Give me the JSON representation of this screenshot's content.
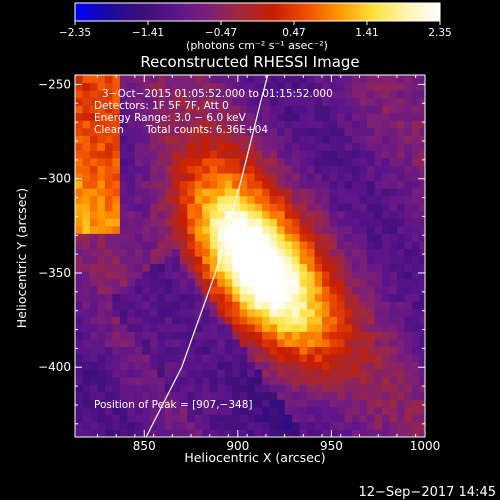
{
  "colorbar": {
    "ticks": [
      {
        "value": -2.35,
        "label": "−2.35"
      },
      {
        "value": -1.41,
        "label": "−1.41"
      },
      {
        "value": -0.47,
        "label": "−0.47"
      },
      {
        "value": 0.47,
        "label": "0.47"
      },
      {
        "value": 1.41,
        "label": "1.41"
      },
      {
        "value": 2.35,
        "label": "2.35"
      }
    ],
    "range": [
      -2.35,
      2.35
    ],
    "unit_label": "(photons cm⁻² s⁻¹ asec⁻²)",
    "colors": [
      "#0000ff",
      "#1a0aa0",
      "#3c0f75",
      "#5a148c",
      "#7a1f7a",
      "#a0283c",
      "#c81e00",
      "#f05000",
      "#ff9a00",
      "#ffe23c",
      "#fff5b0",
      "#ffffff"
    ]
  },
  "chart_data": {
    "type": "heatmap",
    "title": "Reconstructed RHESSI Image",
    "xlabel": "Heliocentric X (arcsec)",
    "ylabel": "Heliocentric Y (arcsec)",
    "xlim": [
      813,
      1000
    ],
    "ylim": [
      -437,
      -245
    ],
    "x_ticks": [
      850,
      900,
      950,
      1000
    ],
    "y_ticks": [
      {
        "value": -250,
        "label": "−250"
      },
      {
        "value": -300,
        "label": "−300"
      },
      {
        "value": -350,
        "label": "−350"
      },
      {
        "value": -400,
        "label": "−400"
      }
    ],
    "annotations": [
      "3−Oct−2015 01:05:52.000 to 01:15:52.000",
      "Detectors: 1F 5F 7F, Att 0",
      "Energy Range: 3.0 − 6.0 keV",
      "Clean",
      "Total counts: 6.36E+04"
    ],
    "peak_label": "Position of Peak = [907,−348]",
    "peak": [
      907,
      -348
    ],
    "limb": [
      [
        851,
        -437
      ],
      [
        870,
        -400
      ],
      [
        888,
        -350
      ],
      [
        902,
        -300
      ],
      [
        912,
        -260
      ],
      [
        916,
        -245
      ]
    ]
  },
  "footer": {
    "timestamp": "12−Sep−2017 14:45"
  }
}
